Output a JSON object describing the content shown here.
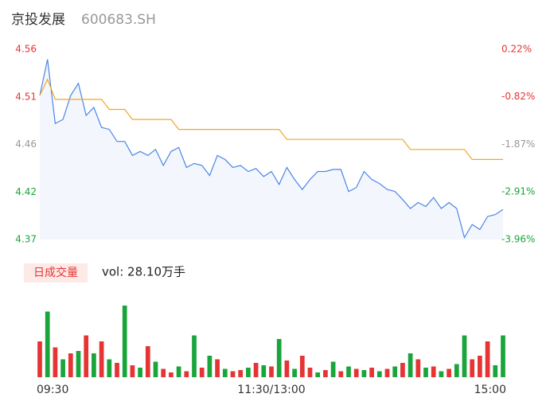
{
  "chart_data": [
    {
      "type": "line",
      "title": "京投发展",
      "subtitle": "600683.SH",
      "x": [
        0,
        4,
        8,
        12,
        16,
        20,
        24,
        28,
        32,
        36,
        40,
        44,
        48,
        52,
        56,
        60,
        64,
        68,
        72,
        76,
        80,
        84,
        88,
        92,
        96,
        100,
        104,
        108,
        112,
        116,
        120,
        124,
        128,
        132,
        136,
        140,
        144,
        148,
        152,
        156,
        160,
        164,
        168,
        172,
        176,
        180,
        184,
        188,
        192,
        196,
        200,
        204,
        208,
        212,
        216,
        220,
        224,
        228,
        232,
        236,
        240
      ],
      "xlim": [
        0,
        240
      ],
      "ylim": [
        4.37,
        4.56
      ],
      "yticks": [
        4.56,
        {
          "value": 4.5125,
          "label": "4.51"
        },
        {
          "value": 4.465,
          "label": "4.46"
        },
        {
          "value": 4.4175,
          "label": "4.42"
        },
        4.37
      ],
      "ytick_colors": [
        "#e63434",
        "#e63434",
        "#999999",
        "#19a53b",
        "#19a53b"
      ],
      "y2lim": [
        -3.96,
        0.22
      ],
      "y2ticks": [
        {
          "value": 0.22,
          "label": "0.22%"
        },
        {
          "value": -0.82,
          "label": "-0.82%"
        },
        {
          "value": -1.87,
          "label": "-1.87%"
        },
        {
          "value": -2.91,
          "label": "-2.91%"
        },
        {
          "value": -3.96,
          "label": "-3.96%"
        }
      ],
      "series": [
        {
          "color": "#4a86e8",
          "area": "#f3f6fc",
          "values": [
            4.514,
            4.55,
            4.486,
            4.49,
            4.514,
            4.526,
            4.494,
            4.502,
            4.482,
            4.48,
            4.468,
            4.468,
            4.454,
            4.458,
            4.454,
            4.46,
            4.444,
            4.458,
            4.462,
            4.442,
            4.446,
            4.444,
            4.434,
            4.454,
            4.45,
            4.442,
            4.444,
            4.438,
            4.441,
            4.433,
            4.438,
            4.425,
            4.442,
            4.43,
            4.42,
            4.43,
            4.438,
            4.438,
            4.44,
            4.44,
            4.418,
            4.422,
            4.438,
            4.43,
            4.426,
            4.42,
            4.418,
            4.41,
            4.401,
            4.407,
            4.403,
            4.412,
            4.401,
            4.407,
            4.401,
            4.372,
            4.385,
            4.38,
            4.393,
            4.395,
            4.4
          ]
        },
        {
          "color": "#f5a623",
          "values": [
            4.514,
            4.53,
            4.51,
            4.51,
            4.51,
            4.51,
            4.51,
            4.51,
            4.51,
            4.5,
            4.5,
            4.5,
            4.49,
            4.49,
            4.49,
            4.49,
            4.49,
            4.49,
            4.48,
            4.48,
            4.48,
            4.48,
            4.48,
            4.48,
            4.48,
            4.48,
            4.48,
            4.48,
            4.48,
            4.48,
            4.48,
            4.48,
            4.47,
            4.47,
            4.47,
            4.47,
            4.47,
            4.47,
            4.47,
            4.47,
            4.47,
            4.47,
            4.47,
            4.47,
            4.47,
            4.47,
            4.47,
            4.47,
            4.46,
            4.46,
            4.46,
            4.46,
            4.46,
            4.46,
            4.46,
            4.46,
            4.45,
            4.45,
            4.45,
            4.45,
            4.45
          ]
        }
      ]
    },
    {
      "type": "bar",
      "title": "日成交量",
      "annotation": "vol: 28.10万手",
      "x": [
        0,
        4,
        8,
        12,
        16,
        20,
        24,
        28,
        32,
        36,
        40,
        44,
        48,
        52,
        56,
        60,
        64,
        68,
        72,
        76,
        80,
        84,
        88,
        92,
        96,
        100,
        104,
        108,
        112,
        116,
        120,
        124,
        128,
        132,
        136,
        140,
        144,
        148,
        152,
        156,
        160,
        164,
        168,
        172,
        176,
        180,
        184,
        188,
        192,
        196,
        200,
        204,
        208,
        212,
        216,
        220,
        224,
        228,
        232,
        236,
        240
      ],
      "xlim": [
        0,
        240
      ],
      "xticks": [
        {
          "value": 0,
          "label": "09:30"
        },
        {
          "value": 120,
          "label": "11:30/13:00"
        },
        {
          "value": 240,
          "label": "15:00"
        }
      ],
      "series": [
        {
          "color": "#e63434",
          "values": [
            3000,
            null,
            2500,
            null,
            2000,
            null,
            3500,
            null,
            3000,
            null,
            1200,
            null,
            1000,
            null,
            2600,
            null,
            700,
            400,
            null,
            500,
            null,
            800,
            null,
            1500,
            null,
            500,
            600,
            null,
            1200,
            null,
            900,
            null,
            1400,
            null,
            1800,
            800,
            null,
            600,
            null,
            500,
            null,
            700,
            null,
            800,
            null,
            700,
            null,
            1200,
            null,
            1500,
            null,
            900,
            null,
            700,
            null,
            null,
            1500,
            1800,
            3000,
            null,
            null
          ]
        },
        {
          "color": "#19a53b",
          "values": [
            null,
            5500,
            null,
            1500,
            null,
            2200,
            null,
            2000,
            null,
            1500,
            null,
            6000,
            null,
            800,
            null,
            1300,
            null,
            null,
            900,
            null,
            3500,
            null,
            1800,
            null,
            700,
            null,
            null,
            800,
            null,
            1000,
            null,
            3200,
            null,
            700,
            null,
            null,
            400,
            null,
            1300,
            null,
            900,
            null,
            600,
            null,
            500,
            null,
            900,
            null,
            2000,
            null,
            800,
            null,
            500,
            null,
            1100,
            3500,
            null,
            null,
            null,
            1000,
            3500
          ]
        }
      ]
    }
  ]
}
